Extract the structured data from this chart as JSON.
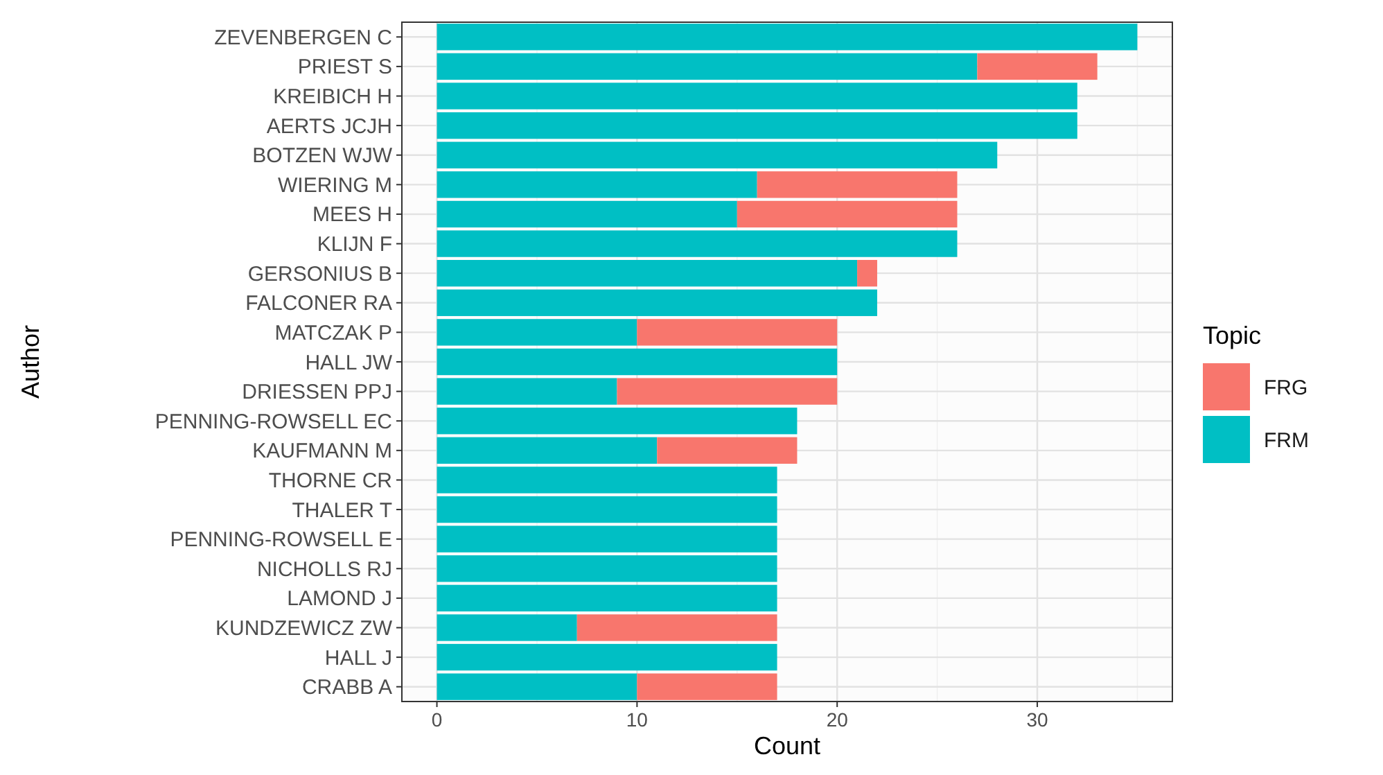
{
  "chart_data": {
    "type": "bar",
    "orientation": "horizontal",
    "stacked": true,
    "xlabel": "Count",
    "ylabel": "Author",
    "legend_title": "Topic",
    "legend": "right",
    "grid": true,
    "categories": [
      "ZEVENBERGEN C",
      "PRIEST S",
      "KREIBICH H",
      "AERTS JCJH",
      "BOTZEN WJW",
      "WIERING M",
      "MEES H",
      "KLIJN F",
      "GERSONIUS B",
      "FALCONER RA",
      "MATCZAK P",
      "HALL JW",
      "DRIESSEN PPJ",
      "PENNING-ROWSELL EC",
      "KAUFMANN M",
      "THORNE CR",
      "THALER T",
      "PENNING-ROWSELL E",
      "NICHOLLS RJ",
      "LAMOND J",
      "KUNDZEWICZ ZW",
      "HALL J",
      "CRABB A"
    ],
    "xlim": [
      -1.75,
      36.75
    ],
    "xticks": [
      0,
      10,
      20,
      30
    ],
    "series": [
      {
        "name": "FRM",
        "color": "#00bfc4",
        "values": [
          35,
          27,
          32,
          32,
          28,
          16,
          15,
          26,
          21,
          22,
          10,
          20,
          9,
          18,
          11,
          17,
          17,
          17,
          17,
          17,
          7,
          17,
          10
        ]
      },
      {
        "name": "FRG",
        "color": "#f8766d",
        "values": [
          0,
          6,
          0,
          0,
          0,
          10,
          11,
          0,
          1,
          0,
          10,
          0,
          11,
          0,
          7,
          0,
          0,
          0,
          0,
          0,
          10,
          0,
          7
        ]
      }
    ]
  }
}
